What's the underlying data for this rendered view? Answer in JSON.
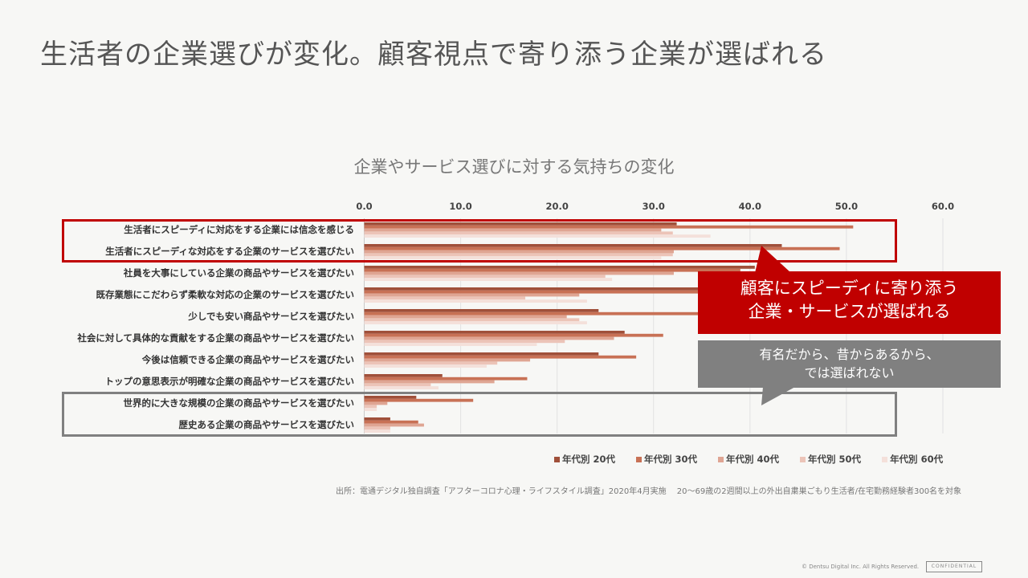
{
  "page": {
    "title": "生活者の企業選びが変化。顧客視点で寄り添う企業が選ばれる",
    "callout_red": [
      "顧客にスピーディに寄り添う",
      "企業・サービスが選ばれる"
    ],
    "callout_gray": [
      "有名だから、昔からあるから、",
      "では選ばれない"
    ],
    "source": "出所：電通デジタル独自調査「アフターコロナ心理・ライフスタイル調査」2020年4月実施　 20〜69歳の2週間以上の外出自粛巣ごもり生活者/在宅勤務経験者300名を対象",
    "copyright": "© Dentsu Digital Inc. All Rights Reserved.",
    "confidential": "CONFIDENTIAL",
    "highlight_color": "#c00000",
    "muted_color": "#808080"
  },
  "chart_data": {
    "type": "bar",
    "orientation": "horizontal",
    "title": "企業やサービス選びに対する気持ちの変化",
    "xlim": [
      0,
      60
    ],
    "xticks": [
      "0.0",
      "10.0",
      "20.0",
      "30.0",
      "40.0",
      "50.0",
      "60.0"
    ],
    "grid": true,
    "legend_position": "bottom-right",
    "categories": [
      "生活者にスピーディに対応をする企業には信念を感じる",
      "生活者にスピーディな対応をする企業のサービスを選びたい",
      "社員を大事にしている企業の商品やサービスを選びたい",
      "既存業態にこだわらず柔軟な対応の企業のサービスを選びたい",
      "少しでも安い商品やサービスを選びたい",
      "社会に対して具体的な貢献をする企業の商品やサービスを選びたい",
      "今後は信頼できる企業の商品やサービスを選びたい",
      "トップの意思表示が明確な企業の商品やサービスを選びたい",
      "世界的に大きな規模の企業の商品やサービスを選びたい",
      "歴史ある企業の商品やサービスを選びたい"
    ],
    "series": [
      {
        "name": "年代別 20代",
        "color": "#a0503a",
        "values": [
          32.4,
          43.3,
          40.5,
          36.0,
          24.3,
          27.0,
          24.3,
          8.1,
          5.4,
          2.7
        ]
      },
      {
        "name": "年代別 30代",
        "color": "#c87155",
        "values": [
          50.7,
          49.3,
          39.0,
          38.0,
          35.0,
          31.0,
          28.2,
          16.9,
          11.3,
          5.6
        ]
      },
      {
        "name": "年代別 40代",
        "color": "#dfa593",
        "values": [
          30.8,
          32.1,
          32.1,
          22.3,
          21.0,
          25.9,
          17.2,
          13.5,
          2.4,
          6.2
        ]
      },
      {
        "name": "年代別 50代",
        "color": "#ecc4b8",
        "values": [
          32.0,
          32.0,
          25.0,
          16.7,
          22.3,
          20.8,
          13.8,
          6.9,
          1.3,
          2.7
        ]
      },
      {
        "name": "年代別 60代",
        "color": "#f4e0da",
        "values": [
          35.9,
          30.8,
          25.7,
          23.1,
          23.1,
          17.9,
          12.7,
          7.7,
          1.3,
          2.7
        ]
      }
    ]
  }
}
